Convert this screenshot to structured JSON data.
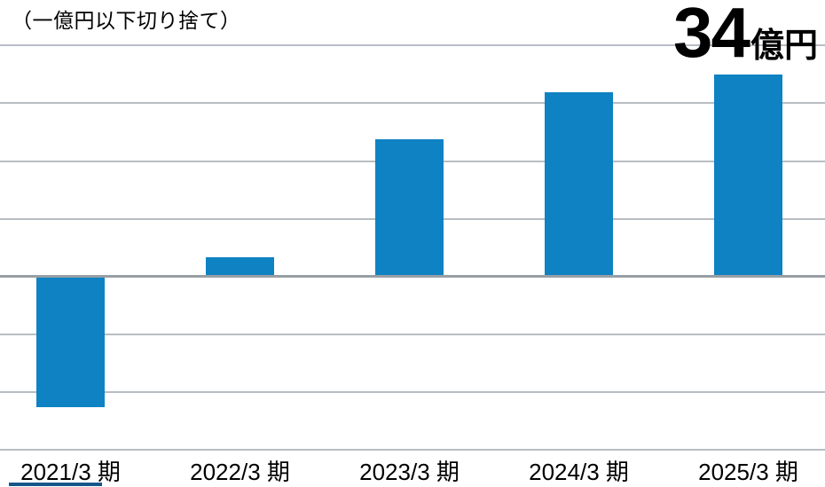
{
  "note": "（一億円以下切り捨て）",
  "highlight": {
    "value": "34",
    "unit": "億円"
  },
  "colors": {
    "bar": "#0e82c3",
    "gridline": "#b7bdc3",
    "zero_line": "#989fa5",
    "text": "#000000"
  },
  "chart_data": {
    "type": "bar",
    "categories": [
      "2021/3 期",
      "2022/3 期",
      "2023/3 期",
      "2024/3 期",
      "2025/3 期"
    ],
    "values": [
      -22,
      3,
      23,
      31,
      34
    ],
    "unit": "億円",
    "title": "（一億円以下切り捨て）",
    "xlabel": "",
    "ylabel": "",
    "ylim": [
      -30,
      40
    ],
    "gridline_interval": 10,
    "grid": "horizontal only, no tick labels",
    "legend": "none",
    "annotations": [
      "34億円 — large bold callout at top right marking the latest (2025/3期) value"
    ]
  }
}
